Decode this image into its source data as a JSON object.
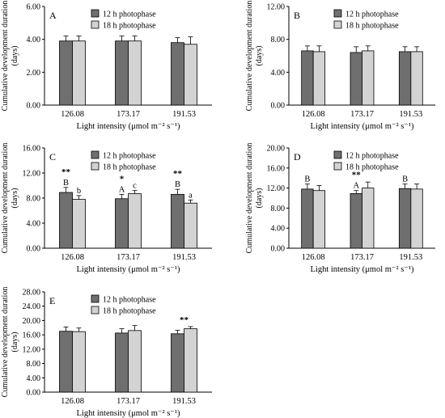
{
  "colors": {
    "bar_12h": "#6f6f6f",
    "bar_18h": "#d3d3d3",
    "stroke": "#000000"
  },
  "chart_data": [
    {
      "type": "bar",
      "panel_label": "A",
      "categories": [
        "126.08",
        "173.17",
        "191.53"
      ],
      "series": [
        {
          "name": "12 h photophase",
          "values": [
            3.9,
            3.9,
            3.8
          ],
          "errors": [
            0.3,
            0.3,
            0.3
          ]
        },
        {
          "name": "18 h photophase",
          "values": [
            3.9,
            3.9,
            3.7
          ],
          "errors": [
            0.3,
            0.3,
            0.45
          ]
        }
      ],
      "ylim": [
        0,
        6
      ],
      "yticks": [
        "0.00",
        "2.00",
        "4.00",
        "6.00"
      ],
      "xlabel": "Light intensity (μmol m⁻² s⁻¹)",
      "ylabel": "Cumulative development duration (days)",
      "legend": "top-center",
      "annotations": []
    },
    {
      "type": "bar",
      "panel_label": "B",
      "categories": [
        "126.08",
        "173.17",
        "191.53"
      ],
      "series": [
        {
          "name": "12 h photophase",
          "values": [
            6.6,
            6.4,
            6.5
          ],
          "errors": [
            0.6,
            0.7,
            0.6
          ]
        },
        {
          "name": "18 h photophase",
          "values": [
            6.5,
            6.6,
            6.5
          ],
          "errors": [
            0.7,
            0.6,
            0.6
          ]
        }
      ],
      "ylim": [
        0,
        12
      ],
      "yticks": [
        "0.00",
        "4.00",
        "8.00",
        "12.00"
      ],
      "xlabel": "Light intensity (μmol m⁻² s⁻¹)",
      "ylabel": "Cumulative development duration (days)",
      "legend": "top-center",
      "annotations": []
    },
    {
      "type": "bar",
      "panel_label": "C",
      "categories": [
        "126.08",
        "173.17",
        "191.53"
      ],
      "series": [
        {
          "name": "12 h photophase",
          "values": [
            8.9,
            7.9,
            8.6
          ],
          "errors": [
            0.8,
            0.7,
            0.8
          ]
        },
        {
          "name": "18 h photophase",
          "values": [
            7.8,
            8.7,
            7.2
          ],
          "errors": [
            0.6,
            0.5,
            0.5
          ]
        }
      ],
      "ylim": [
        0,
        16
      ],
      "yticks": [
        "0.00",
        "4.00",
        "8.00",
        "12.00",
        "16.00"
      ],
      "xlabel": "Light intensity (μmol m⁻² s⁻¹)",
      "ylabel": "Cumulative development duration (days)",
      "legend": "top-center",
      "annotations": [
        {
          "category": 0,
          "text": "**",
          "kind": "group"
        },
        {
          "category": 1,
          "text": "*",
          "kind": "group"
        },
        {
          "category": 2,
          "text": "**",
          "kind": "group"
        },
        {
          "category": 0,
          "series": 0,
          "text": "B"
        },
        {
          "category": 1,
          "series": 0,
          "text": "A"
        },
        {
          "category": 2,
          "series": 0,
          "text": "B"
        },
        {
          "category": 0,
          "series": 1,
          "text": "b"
        },
        {
          "category": 1,
          "series": 1,
          "text": "c"
        },
        {
          "category": 2,
          "series": 1,
          "text": "a"
        }
      ]
    },
    {
      "type": "bar",
      "panel_label": "D",
      "categories": [
        "126.08",
        "173.17",
        "191.53"
      ],
      "series": [
        {
          "name": "12 h photophase",
          "values": [
            11.8,
            10.9,
            11.9
          ],
          "errors": [
            1.0,
            0.6,
            0.9
          ]
        },
        {
          "name": "18 h photophase",
          "values": [
            11.5,
            12.0,
            11.8
          ],
          "errors": [
            1.0,
            1.2,
            1.0
          ]
        }
      ],
      "ylim": [
        0,
        20
      ],
      "yticks": [
        "0.00",
        "4.00",
        "8.00",
        "12.00",
        "16.00",
        "20.00"
      ],
      "xlabel": "Light intensity (μmol m⁻² s⁻¹)",
      "ylabel": "Cumulative development duration (days)",
      "legend": "top-center",
      "annotations": [
        {
          "category": 1,
          "text": "**",
          "kind": "group"
        },
        {
          "category": 0,
          "series": 0,
          "text": "B"
        },
        {
          "category": 1,
          "series": 0,
          "text": "A"
        },
        {
          "category": 2,
          "series": 0,
          "text": "B"
        }
      ]
    },
    {
      "type": "bar",
      "panel_label": "E",
      "categories": [
        "126.08",
        "173.17",
        "191.53"
      ],
      "series": [
        {
          "name": "12 h photophase",
          "values": [
            17.0,
            16.5,
            16.3
          ],
          "errors": [
            1.2,
            1.2,
            1.0
          ]
        },
        {
          "name": "18 h photophase",
          "values": [
            16.9,
            17.2,
            17.7
          ],
          "errors": [
            1.0,
            1.4,
            0.6
          ]
        }
      ],
      "ylim": [
        0,
        28
      ],
      "yticks": [
        "0.00",
        "4.00",
        "8.00",
        "12.00",
        "16.00",
        "20.00",
        "24.00",
        "28.00"
      ],
      "xlabel": "Light intensity (μmol m⁻² s⁻¹)",
      "ylabel": "Cumulative development duration (days)",
      "legend": "top-center",
      "annotations": [
        {
          "category": 2,
          "text": "**",
          "kind": "group"
        }
      ]
    }
  ]
}
